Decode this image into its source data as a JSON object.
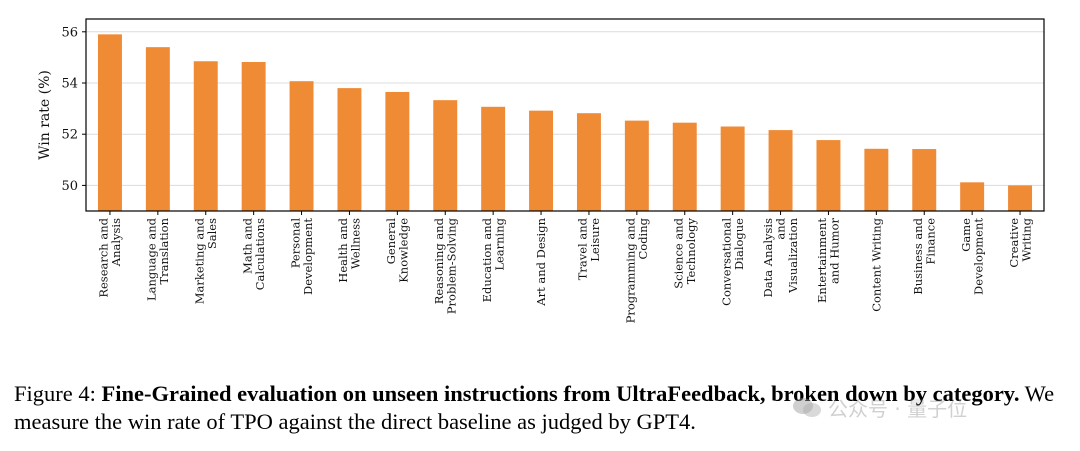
{
  "chart_data": {
    "type": "bar",
    "ylabel": "Win rate (%)",
    "ylim": [
      49.0,
      56.5
    ],
    "yticks": [
      50,
      52,
      54,
      56
    ],
    "grid": "horizontal",
    "bar_color": "#ef8a35",
    "categories": [
      [
        "Research and",
        "Analysis"
      ],
      [
        "Language and",
        "Translation"
      ],
      [
        "Marketing and",
        "Sales"
      ],
      [
        "Math and",
        "Calculations"
      ],
      [
        "Personal",
        "Development"
      ],
      [
        "Health and",
        "Wellness"
      ],
      [
        "General",
        "Knowledge"
      ],
      [
        "Reasoning and",
        "Problem-Solving"
      ],
      [
        "Education and",
        "Learning"
      ],
      [
        "Art and Design"
      ],
      [
        "Travel and",
        "Leisure"
      ],
      [
        "Programming and",
        "Coding"
      ],
      [
        "Science and",
        "Technology"
      ],
      [
        "Conversational",
        "Dialogue"
      ],
      [
        "Data Analysis",
        "and",
        "Visualization"
      ],
      [
        "Entertainment",
        "and Humor"
      ],
      [
        "Content Writing"
      ],
      [
        "Business and",
        "Finance"
      ],
      [
        "Game",
        "Development"
      ],
      [
        "Creative",
        "Writing"
      ]
    ],
    "values": [
      55.9,
      55.4,
      54.85,
      54.82,
      54.07,
      53.8,
      53.65,
      53.33,
      53.07,
      52.92,
      52.82,
      52.53,
      52.45,
      52.3,
      52.16,
      51.77,
      51.43,
      51.42,
      50.12,
      50.0
    ]
  },
  "caption": {
    "prefix": "Figure 4: ",
    "bold": "Fine-Grained evaluation on unseen instructions from UltraFeedback, broken down by category.",
    "rest": " We measure the win rate of TPO against the direct baseline as judged by GPT4."
  },
  "watermark": {
    "text": "公众号 · 量子位",
    "icon": "wechat-icon"
  }
}
